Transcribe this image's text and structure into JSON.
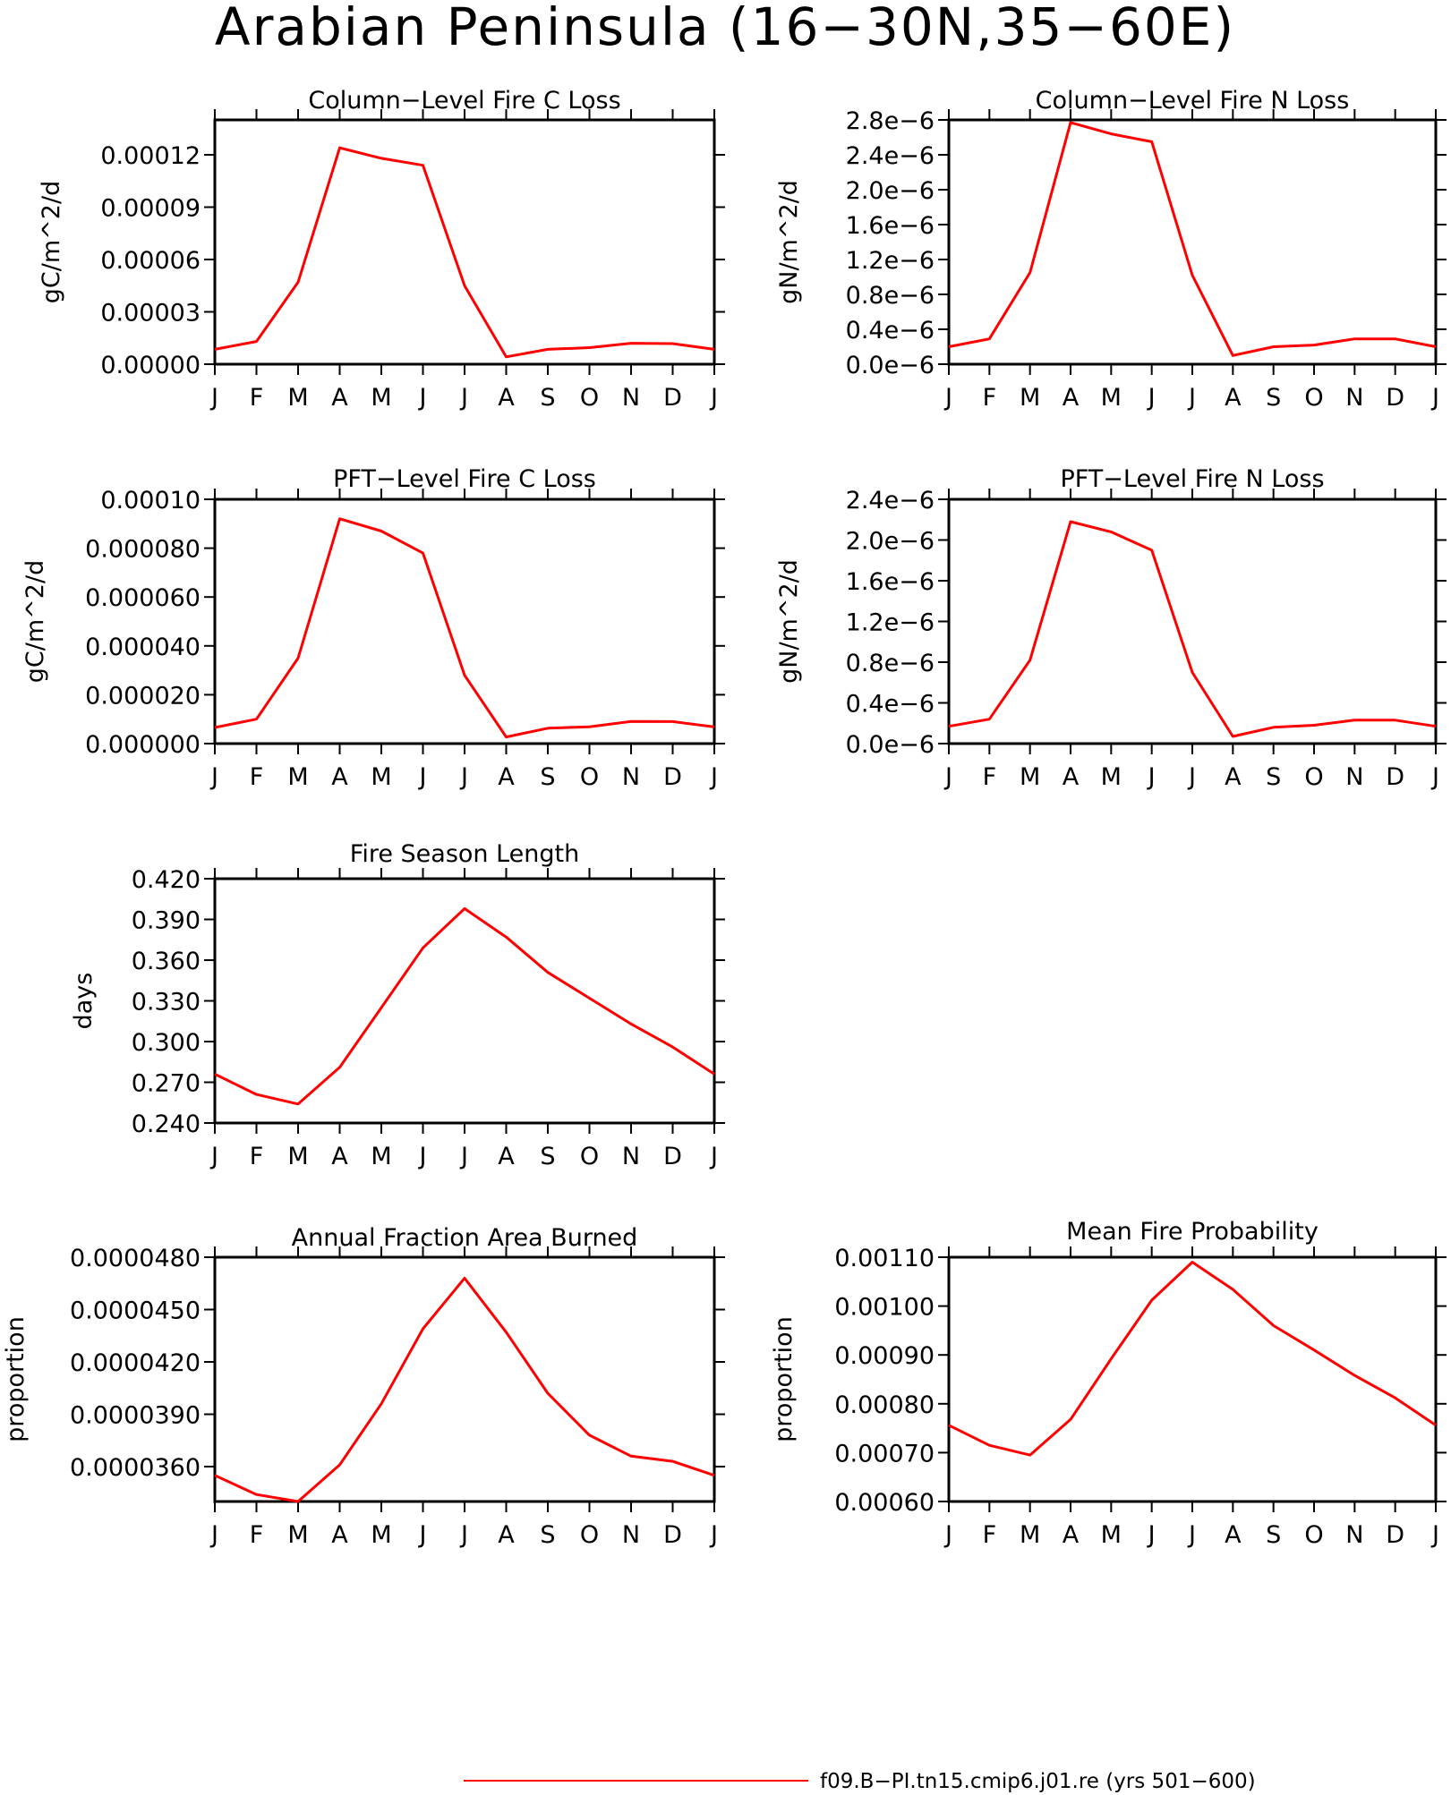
{
  "title": "Arabian Peninsula (16−30N,35−60E)",
  "legend": {
    "label": "f09.B−PI.tn15.cmip6.j01.re (yrs 501−600)",
    "color": "#ff0000"
  },
  "months": [
    "J",
    "F",
    "M",
    "A",
    "M",
    "J",
    "J",
    "A",
    "S",
    "O",
    "N",
    "D",
    "J"
  ],
  "chart_data": [
    {
      "type": "line",
      "title": "Column−Level Fire C Loss",
      "ylabel": "gC/m^2/d",
      "categories": [
        "J",
        "F",
        "M",
        "A",
        "M",
        "J",
        "J",
        "A",
        "S",
        "O",
        "N",
        "D",
        "J"
      ],
      "yticks": [
        "0.00000",
        "0.00003",
        "0.00006",
        "0.00009",
        "0.00012"
      ],
      "ylim": [
        0,
        0.00014
      ],
      "series": [
        {
          "values": [
            8.5e-06,
            1.3e-05,
            4.7e-05,
            0.000124,
            0.000118,
            0.000114,
            4.5e-05,
            4.2e-06,
            8.5e-06,
            9.5e-06,
            1.2e-05,
            1.18e-05,
            8.5e-06
          ]
        }
      ]
    },
    {
      "type": "line",
      "title": "Column−Level Fire N Loss",
      "ylabel": "gN/m^2/d",
      "categories": [
        "J",
        "F",
        "M",
        "A",
        "M",
        "J",
        "J",
        "A",
        "S",
        "O",
        "N",
        "D",
        "J"
      ],
      "yticks": [
        "0.0e−6",
        "0.4e−6",
        "0.8e−6",
        "1.2e−6",
        "1.6e−6",
        "2.0e−6",
        "2.4e−6",
        "2.8e−6"
      ],
      "ylim": [
        0,
        2.8e-06
      ],
      "series": [
        {
          "values": [
            2e-07,
            2.9e-07,
            1.05e-06,
            2.77e-06,
            2.64e-06,
            2.55e-06,
            1.02e-06,
            1e-07,
            2e-07,
            2.2e-07,
            2.9e-07,
            2.9e-07,
            2e-07
          ]
        }
      ]
    },
    {
      "type": "line",
      "title": "PFT−Level Fire C Loss",
      "ylabel": "gC/m^2/d",
      "categories": [
        "J",
        "F",
        "M",
        "A",
        "M",
        "J",
        "J",
        "A",
        "S",
        "O",
        "N",
        "D",
        "J"
      ],
      "yticks": [
        "0.000000",
        "0.000020",
        "0.000040",
        "0.000060",
        "0.000080",
        "0.00010"
      ],
      "ylim": [
        0,
        0.0001
      ],
      "series": [
        {
          "values": [
            6.6e-06,
            1e-05,
            3.5e-05,
            9.2e-05,
            8.7e-05,
            7.8e-05,
            2.8e-05,
            2.7e-06,
            6.3e-06,
            6.9e-06,
            9.1e-06,
            9e-06,
            6.8e-06
          ]
        }
      ]
    },
    {
      "type": "line",
      "title": "PFT−Level Fire N Loss",
      "ylabel": "gN/m^2/d",
      "categories": [
        "J",
        "F",
        "M",
        "A",
        "M",
        "J",
        "J",
        "A",
        "S",
        "O",
        "N",
        "D",
        "J"
      ],
      "yticks": [
        "0.0e−6",
        "0.4e−6",
        "0.8e−6",
        "1.2e−6",
        "1.6e−6",
        "2.0e−6",
        "2.4e−6"
      ],
      "ylim": [
        0,
        2.4e-06
      ],
      "series": [
        {
          "values": [
            1.7e-07,
            2.4e-07,
            8.2e-07,
            2.18e-06,
            2.08e-06,
            1.9e-06,
            7e-07,
            7e-08,
            1.6e-07,
            1.8e-07,
            2.3e-07,
            2.3e-07,
            1.7e-07
          ]
        }
      ]
    },
    {
      "type": "line",
      "title": "Fire Season Length",
      "ylabel": "days",
      "categories": [
        "J",
        "F",
        "M",
        "A",
        "M",
        "J",
        "J",
        "A",
        "S",
        "O",
        "N",
        "D",
        "J"
      ],
      "yticks": [
        "0.240",
        "0.270",
        "0.300",
        "0.330",
        "0.360",
        "0.390",
        "0.420"
      ],
      "ylim": [
        0.24,
        0.42
      ],
      "series": [
        {
          "values": [
            0.276,
            0.261,
            0.254,
            0.281,
            0.325,
            0.369,
            0.398,
            0.377,
            0.351,
            0.332,
            0.313,
            0.296,
            0.276
          ]
        }
      ]
    },
    {
      "type": "line",
      "title": "Annual Fraction Area Burned",
      "ylabel": "proportion",
      "categories": [
        "J",
        "F",
        "M",
        "A",
        "M",
        "J",
        "J",
        "A",
        "S",
        "O",
        "N",
        "D",
        "J"
      ],
      "yticks": [
        "0.0000360",
        "0.0000390",
        "0.0000420",
        "0.0000450",
        "0.0000480"
      ],
      "ylim": [
        3.4e-05,
        4.8e-05
      ],
      "series": [
        {
          "values": [
            3.55e-05,
            3.44e-05,
            3.4e-05,
            3.61e-05,
            3.96e-05,
            4.39e-05,
            4.68e-05,
            4.37e-05,
            4.02e-05,
            3.78e-05,
            3.66e-05,
            3.63e-05,
            3.55e-05
          ]
        }
      ]
    },
    {
      "type": "line",
      "title": "Mean Fire Probability",
      "ylabel": "proportion",
      "categories": [
        "J",
        "F",
        "M",
        "A",
        "M",
        "J",
        "J",
        "A",
        "S",
        "O",
        "N",
        "D",
        "J"
      ],
      "yticks": [
        "0.00060",
        "0.00070",
        "0.00080",
        "0.00090",
        "0.00100",
        "0.00110"
      ],
      "ylim": [
        0.0006,
        0.0011
      ],
      "series": [
        {
          "values": [
            0.000756,
            0.000715,
            0.000695,
            0.000768,
            0.000892,
            0.001012,
            0.00109,
            0.001034,
            0.00096,
            0.00091,
            0.000858,
            0.000812,
            0.000756
          ]
        }
      ]
    }
  ]
}
